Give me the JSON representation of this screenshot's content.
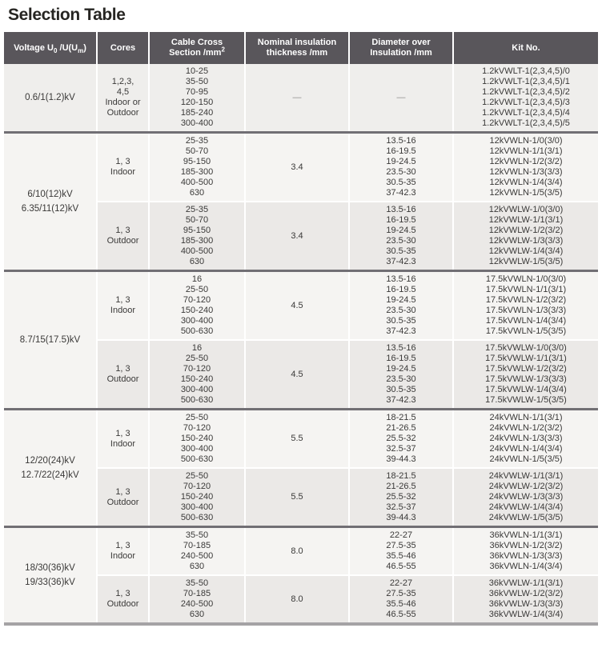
{
  "title": "Selection Table",
  "table": {
    "headers": {
      "voltage": {
        "pre": "Voltage U",
        "sub1": "0",
        "mid": " /U(U",
        "sub2": "m",
        "post": ")"
      },
      "cores": "Cores",
      "cross_section_line1": "Cable Cross",
      "cross_section_line2": "Section /mm",
      "cross_section_sup": "2",
      "thickness_line1": "Nominal insulation",
      "thickness_line2": "thickness /mm",
      "diameter_line1": "Diameter over",
      "diameter_line2": "Insulation /mm",
      "kit": "Kit No."
    },
    "colors": {
      "header_bg": "#59565b",
      "header_text": "#ffffff",
      "row_light": "#f5f4f2",
      "row_dark": "#ebe9e7",
      "row_single": "#efeeec",
      "block_divider": "#716f74",
      "bottom_bar": "#a5a3a5",
      "body_text": "#3a3938",
      "dash_text": "#8f8d8c"
    },
    "blocks": [
      {
        "voltage": [
          "0.6/1(1.2)kV"
        ],
        "rows": [
          {
            "cores": [
              "1,2,3,",
              "4,5",
              "Indoor or",
              "Outdoor"
            ],
            "cross_section": [
              "10-25",
              "35-50",
              "70-95",
              "120-150",
              "185-240",
              "300-400"
            ],
            "thickness": [
              "—"
            ],
            "diameter": [
              "—"
            ],
            "kit": [
              "1.2kVWLT-1(2,3,4,5)/0",
              "1.2kVWLT-1(2,3,4,5)/1",
              "1.2kVWLT-1(2,3,4,5)/2",
              "1.2kVWLT-1(2,3,4,5)/3",
              "1.2kVWLT-1(2,3,4,5)/4",
              "1.2kVWLT-1(2,3,4,5)/5"
            ]
          }
        ]
      },
      {
        "voltage": [
          "6/10(12)kV",
          "6.35/11(12)kV"
        ],
        "rows": [
          {
            "cores": [
              "1, 3",
              "Indoor"
            ],
            "cross_section": [
              "25-35",
              "50-70",
              "95-150",
              "185-300",
              "400-500",
              "630"
            ],
            "thickness": [
              "3.4"
            ],
            "diameter": [
              "13.5-16",
              "16-19.5",
              "19-24.5",
              "23.5-30",
              "30.5-35",
              "37-42.3"
            ],
            "kit": [
              "12kVWLN-1/0(3/0)",
              "12kVWLN-1/1(3/1)",
              "12kVWLN-1/2(3/2)",
              "12kVWLN-1/3(3/3)",
              "12kVWLN-1/4(3/4)",
              "12kVWLN-1/5(3/5)"
            ]
          },
          {
            "cores": [
              "1, 3",
              "Outdoor"
            ],
            "cross_section": [
              "25-35",
              "50-70",
              "95-150",
              "185-300",
              "400-500",
              "630"
            ],
            "thickness": [
              "3.4"
            ],
            "diameter": [
              "13.5-16",
              "16-19.5",
              "19-24.5",
              "23.5-30",
              "30.5-35",
              "37-42.3"
            ],
            "kit": [
              "12kVWLW-1/0(3/0)",
              "12kVWLW-1/1(3/1)",
              "12kVWLW-1/2(3/2)",
              "12kVWLW-1/3(3/3)",
              "12kVWLW-1/4(3/4)",
              "12kVWLW-1/5(3/5)"
            ]
          }
        ]
      },
      {
        "voltage": [
          "8.7/15(17.5)kV"
        ],
        "rows": [
          {
            "cores": [
              "1, 3",
              "Indoor"
            ],
            "cross_section": [
              "16",
              "25-50",
              "70-120",
              "150-240",
              "300-400",
              "500-630"
            ],
            "thickness": [
              "4.5"
            ],
            "diameter": [
              "13.5-16",
              "16-19.5",
              "19-24.5",
              "23.5-30",
              "30.5-35",
              "37-42.3"
            ],
            "kit": [
              "17.5kVWLN-1/0(3/0)",
              "17.5kVWLN-1/1(3/1)",
              "17.5kVWLN-1/2(3/2)",
              "17.5kVWLN-1/3(3/3)",
              "17.5kVWLN-1/4(3/4)",
              "17.5kVWLN-1/5(3/5)"
            ]
          },
          {
            "cores": [
              "1, 3",
              "Outdoor"
            ],
            "cross_section": [
              "16",
              "25-50",
              "70-120",
              "150-240",
              "300-400",
              "500-630"
            ],
            "thickness": [
              "4.5"
            ],
            "diameter": [
              "13.5-16",
              "16-19.5",
              "19-24.5",
              "23.5-30",
              "30.5-35",
              "37-42.3"
            ],
            "kit": [
              "17.5kVWLW-1/0(3/0)",
              "17.5kVWLW-1/1(3/1)",
              "17.5kVWLW-1/2(3/2)",
              "17.5kVWLW-1/3(3/3)",
              "17.5kVWLW-1/4(3/4)",
              "17.5kVWLW-1/5(3/5)"
            ]
          }
        ]
      },
      {
        "voltage": [
          "12/20(24)kV",
          "12.7/22(24)kV"
        ],
        "rows": [
          {
            "cores": [
              "1, 3",
              "Indoor"
            ],
            "cross_section": [
              "25-50",
              "70-120",
              "150-240",
              "300-400",
              "500-630"
            ],
            "thickness": [
              "5.5"
            ],
            "diameter": [
              "18-21.5",
              "21-26.5",
              "25.5-32",
              "32.5-37",
              "39-44.3"
            ],
            "kit": [
              "24kVWLN-1/1(3/1)",
              "24kVWLN-1/2(3/2)",
              "24kVWLN-1/3(3/3)",
              "24kVWLN-1/4(3/4)",
              "24kVWLN-1/5(3/5)"
            ]
          },
          {
            "cores": [
              "1, 3",
              "Outdoor"
            ],
            "cross_section": [
              "25-50",
              "70-120",
              "150-240",
              "300-400",
              "500-630"
            ],
            "thickness": [
              "5.5"
            ],
            "diameter": [
              "18-21.5",
              "21-26.5",
              "25.5-32",
              "32.5-37",
              "39-44.3"
            ],
            "kit": [
              "24kVWLW-1/1(3/1)",
              "24kVWLW-1/2(3/2)",
              "24kVWLW-1/3(3/3)",
              "24kVWLW-1/4(3/4)",
              "24kVWLW-1/5(3/5)"
            ]
          }
        ]
      },
      {
        "voltage": [
          "18/30(36)kV",
          "19/33(36)kV"
        ],
        "rows": [
          {
            "cores": [
              "1, 3",
              "Indoor"
            ],
            "cross_section": [
              "35-50",
              "70-185",
              "240-500",
              "630"
            ],
            "thickness": [
              "8.0"
            ],
            "diameter": [
              "22-27",
              "27.5-35",
              "35.5-46",
              "46.5-55"
            ],
            "kit": [
              "36kVWLN-1/1(3/1)",
              "36kVWLN-1/2(3/2)",
              "36kVWLN-1/3(3/3)",
              "36kVWLN-1/4(3/4)"
            ]
          },
          {
            "cores": [
              "1, 3",
              "Outdoor"
            ],
            "cross_section": [
              "35-50",
              "70-185",
              "240-500",
              "630"
            ],
            "thickness": [
              "8.0"
            ],
            "diameter": [
              "22-27",
              "27.5-35",
              "35.5-46",
              "46.5-55"
            ],
            "kit": [
              "36kVWLW-1/1(3/1)",
              "36kVWLW-1/2(3/2)",
              "36kVWLW-1/3(3/3)",
              "36kVWLW-1/4(3/4)"
            ]
          }
        ]
      }
    ]
  }
}
